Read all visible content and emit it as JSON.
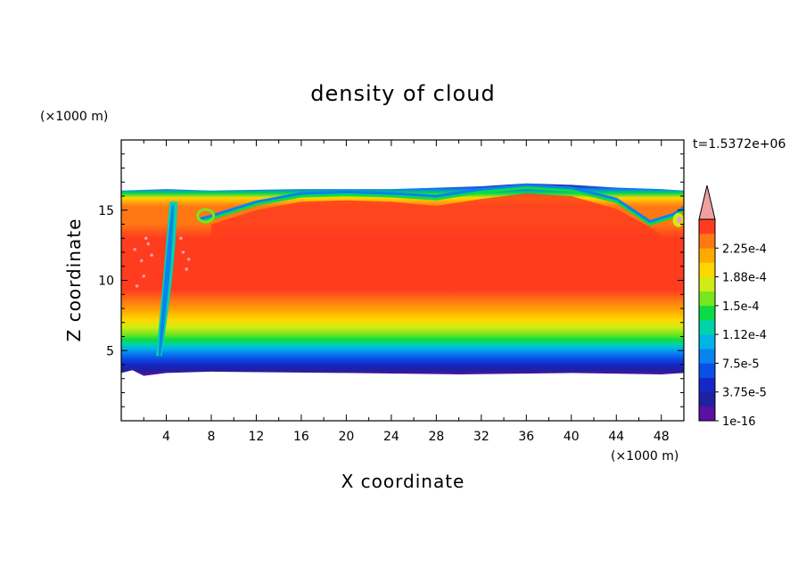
{
  "chart_data": {
    "type": "heatmap",
    "title": "density of cloud",
    "xlabel": "X coordinate",
    "ylabel": "Z coordinate",
    "x_unit": "(×1000 m)",
    "y_unit": "(×1000 m)",
    "time_label": "t=1.5372e+06",
    "xlim": [
      0,
      50
    ],
    "ylim": [
      0,
      20
    ],
    "xticks": [
      4,
      8,
      12,
      16,
      20,
      24,
      28,
      32,
      36,
      40,
      44,
      48
    ],
    "yticks": [
      5,
      10,
      15
    ],
    "colorbar": {
      "labels": [
        "1e-16",
        "3.75e-5",
        "7.5e-5",
        "1.12e-4",
        "1.5e-4",
        "1.88e-4",
        "2.25e-4"
      ],
      "levels": [
        1e-16,
        1.875e-05,
        3.75e-05,
        5.625e-05,
        7.5e-05,
        9.375e-05,
        0.0001125,
        0.00013125,
        0.00015,
        0.00016875,
        0.0001875,
        0.00020625,
        0.000225,
        0.00024375
      ],
      "colors": [
        "#5a10a0",
        "#2020a0",
        "#1428c8",
        "#0a50e6",
        "#0a82f0",
        "#00b4e6",
        "#00d2aa",
        "#0adc46",
        "#78e61e",
        "#d2eb14",
        "#ffd700",
        "#ffaa00",
        "#ff7814",
        "#ff3c1e"
      ],
      "extend_color": "#f0a0a0"
    },
    "cloud_extent": {
      "z_base": [
        [
          0,
          3.4
        ],
        [
          1,
          3.6
        ],
        [
          2,
          3.2
        ],
        [
          4,
          3.4
        ],
        [
          8,
          3.5
        ],
        [
          20,
          3.4
        ],
        [
          30,
          3.3
        ],
        [
          40,
          3.4
        ],
        [
          48,
          3.3
        ],
        [
          50,
          3.4
        ]
      ],
      "z_top": [
        [
          0,
          16.4
        ],
        [
          4,
          16.5
        ],
        [
          8,
          16.4
        ],
        [
          16,
          16.5
        ],
        [
          24,
          16.5
        ],
        [
          32,
          16.7
        ],
        [
          36,
          16.9
        ],
        [
          40,
          16.8
        ],
        [
          44,
          16.6
        ],
        [
          48,
          16.5
        ],
        [
          50,
          16.4
        ]
      ],
      "core_density": 0.00023
    }
  }
}
